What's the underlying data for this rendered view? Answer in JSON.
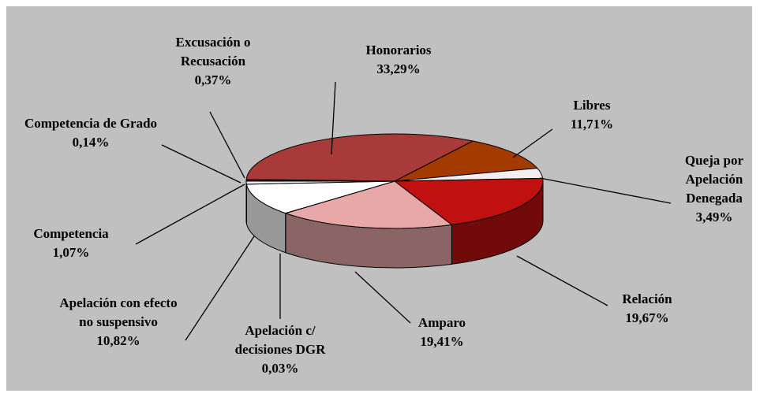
{
  "chart_data": {
    "type": "pie3d",
    "categories": [
      "Honorarios",
      "Libres",
      "Queja por Apelación Denegada",
      "Relación",
      "Amparo",
      "Apelación c/ decisiones DGR",
      "Apelación con efecto no suspensivo",
      "Competencia",
      "Competencia de Grado",
      "Excusación o Recusación"
    ],
    "values": [
      33.29,
      11.71,
      3.49,
      19.67,
      19.41,
      0.03,
      10.82,
      1.07,
      0.14,
      0.37
    ],
    "value_labels": [
      "33,29%",
      "11,71%",
      "3,49%",
      "19,67%",
      "19,41%",
      "0,03%",
      "10,82%",
      "1,07%",
      "0,14%",
      "0,37%"
    ],
    "colors": [
      "#a83a3a",
      "#a33a00",
      "#f5eeee",
      "#c01010",
      "#e8a8a8",
      "#c08080",
      "#ffffff",
      "#f0f0f0",
      "#d0d0d0",
      "#b04040"
    ]
  }
}
